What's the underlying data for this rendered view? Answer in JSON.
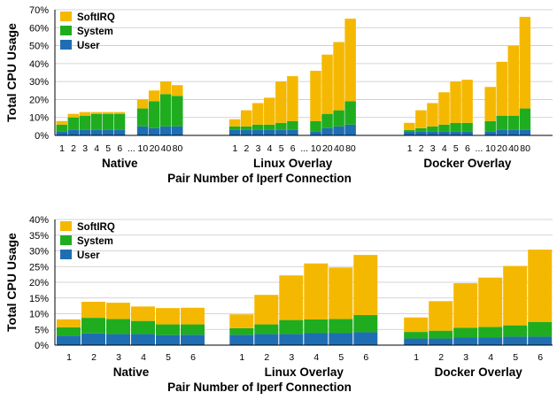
{
  "colors": {
    "softirq": "#f5b800",
    "system": "#1fad1f",
    "user": "#1f6eb4",
    "grid": "#c8c8c8",
    "axis": "#000000"
  },
  "chart_data": [
    {
      "type": "bar",
      "stacked": true,
      "ylabel": "Total CPU Usage",
      "xlabel": "Pair Number of Iperf Connection",
      "ylim": [
        0,
        70
      ],
      "yticks": [
        "0%",
        "10%",
        "20%",
        "30%",
        "40%",
        "50%",
        "60%",
        "70%"
      ],
      "grid": true,
      "legend": {
        "placement": "top-left",
        "entries": [
          "SoftIRQ",
          "System",
          "User"
        ]
      },
      "groups": [
        {
          "name": "Native",
          "categories": [
            "1",
            "2",
            "3",
            "4",
            "5",
            "6",
            "...",
            "10",
            "20",
            "40",
            "80"
          ],
          "user": [
            2,
            3,
            3,
            3,
            3,
            3,
            null,
            5,
            4,
            5,
            5
          ],
          "system": [
            4,
            7,
            8,
            9,
            9,
            9,
            null,
            10,
            15,
            18,
            17
          ],
          "softirq": [
            2,
            2,
            2,
            1,
            1,
            1,
            null,
            5,
            6,
            7,
            6
          ]
        },
        {
          "name": "Linux Overlay",
          "categories": [
            "1",
            "2",
            "3",
            "4",
            "5",
            "6",
            "...",
            "10",
            "20",
            "40",
            "80"
          ],
          "user": [
            3,
            3,
            3,
            3,
            3,
            3,
            null,
            2,
            4,
            5,
            6
          ],
          "system": [
            2,
            2,
            3,
            3,
            4,
            5,
            null,
            6,
            8,
            9,
            13
          ],
          "softirq": [
            4,
            9,
            12,
            15,
            23,
            25,
            null,
            28,
            33,
            38,
            46
          ]
        },
        {
          "name": "Docker Overlay",
          "categories": [
            "1",
            "2",
            "3",
            "4",
            "5",
            "6",
            "...",
            "10",
            "20",
            "40",
            "80"
          ],
          "user": [
            2,
            2,
            2,
            2,
            2,
            2,
            null,
            2,
            3,
            3,
            3
          ],
          "system": [
            1,
            2,
            3,
            4,
            5,
            5,
            null,
            6,
            8,
            8,
            12
          ],
          "softirq": [
            4,
            10,
            13,
            18,
            23,
            24,
            null,
            19,
            30,
            39,
            51
          ]
        }
      ]
    },
    {
      "type": "bar",
      "stacked": true,
      "ylabel": "Total CPU Usage",
      "xlabel": "Pair Number of Iperf Connection",
      "ylim": [
        0,
        40
      ],
      "yticks": [
        "0%",
        "5%",
        "10%",
        "15%",
        "20%",
        "25%",
        "30%",
        "35%",
        "40%"
      ],
      "grid": true,
      "legend": {
        "placement": "top-left",
        "entries": [
          "SoftIRQ",
          "System",
          "User"
        ]
      },
      "groups": [
        {
          "name": "Native",
          "categories": [
            "1",
            "2",
            "3",
            "4",
            "5",
            "6"
          ],
          "user": [
            3,
            3.7,
            3.5,
            3.5,
            3.2,
            3.3
          ],
          "system": [
            2.7,
            5,
            4.8,
            4.2,
            3.4,
            3.3
          ],
          "softirq": [
            2.5,
            5.1,
            5.2,
            4.6,
            5.2,
            5.3
          ]
        },
        {
          "name": "Linux Overlay",
          "categories": [
            "1",
            "2",
            "3",
            "4",
            "5",
            "6"
          ],
          "user": [
            3.3,
            3.5,
            3.5,
            3.8,
            3.8,
            4.1
          ],
          "system": [
            2.1,
            3.1,
            4.5,
            4.4,
            4.5,
            5.5
          ],
          "softirq": [
            4.4,
            9.4,
            14.2,
            17.8,
            16.4,
            19.1
          ]
        },
        {
          "name": "Docker Overlay",
          "categories": [
            "1",
            "2",
            "3",
            "4",
            "5",
            "6"
          ],
          "user": [
            2.1,
            2.1,
            2.4,
            2.4,
            2.7,
            2.7
          ],
          "system": [
            2.1,
            2.5,
            3.1,
            3.4,
            3.6,
            4.7
          ],
          "softirq": [
            4.6,
            9.4,
            14.2,
            15.7,
            18.9,
            23
          ]
        }
      ]
    }
  ]
}
